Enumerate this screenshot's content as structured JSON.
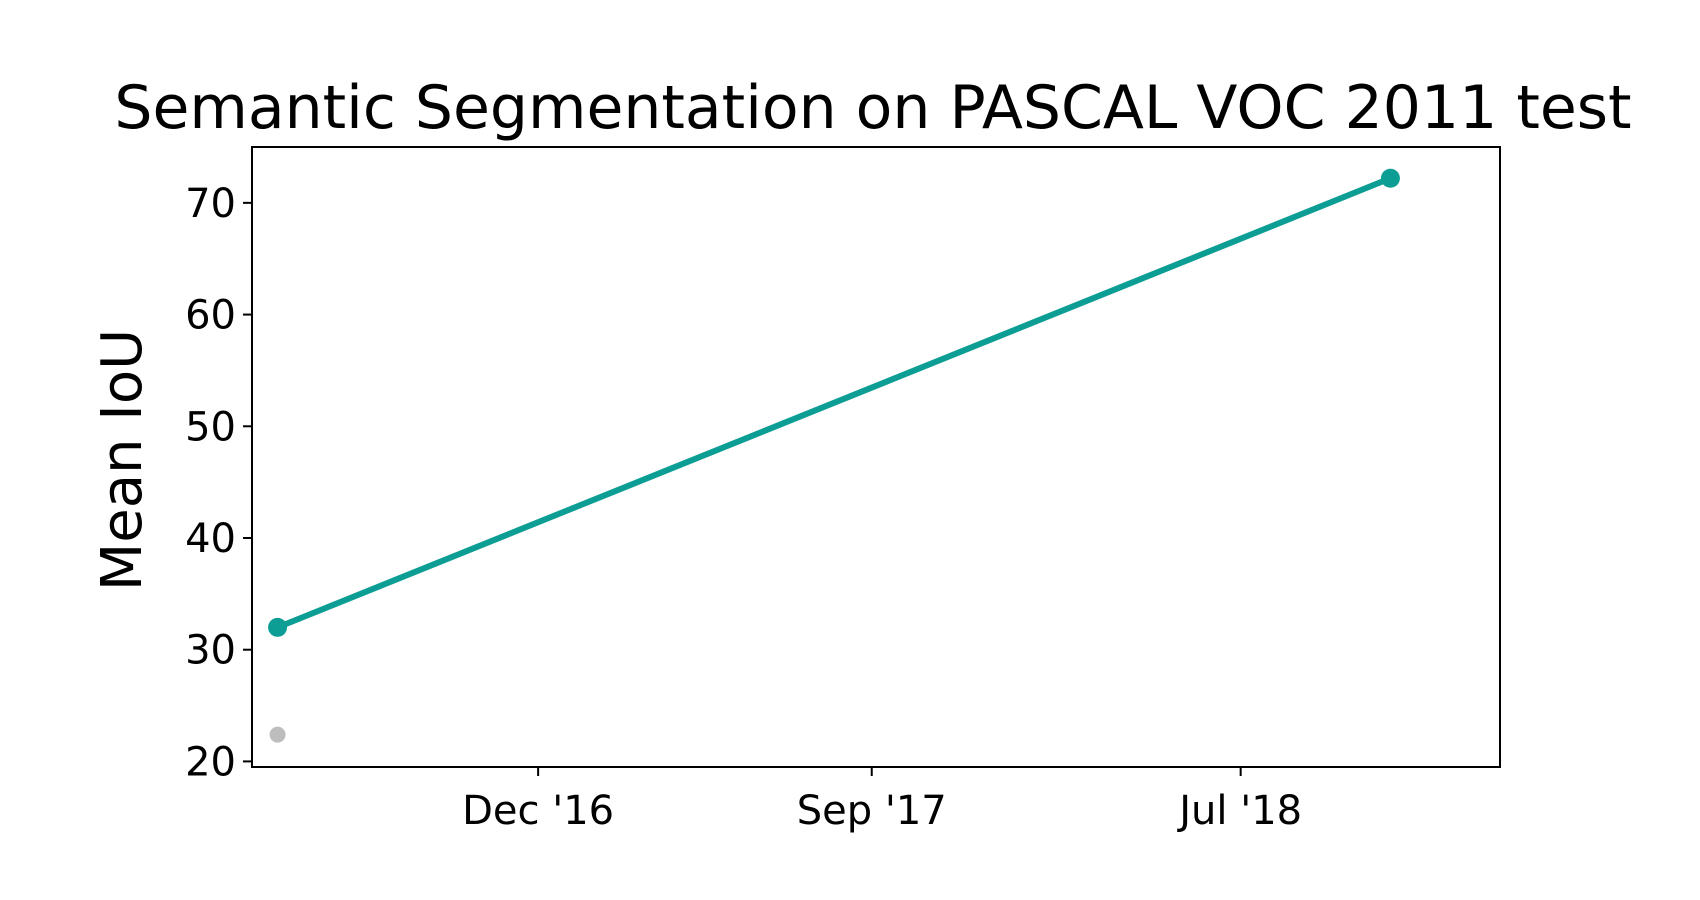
{
  "chart_data": {
    "type": "line",
    "title": "Semantic Segmentation on PASCAL VOC 2011 test",
    "xlabel": "",
    "ylabel": "Mean IoU",
    "x_axis_kind": "date",
    "xlim": [
      "2016-04-10",
      "2019-01-30"
    ],
    "ylim": [
      19.5,
      75
    ],
    "x_ticks": [
      {
        "date": "2016-12-01",
        "label": "Dec '16"
      },
      {
        "date": "2017-09-01",
        "label": "Sep '17"
      },
      {
        "date": "2018-07-01",
        "label": "Jul '18"
      }
    ],
    "y_ticks": [
      20,
      30,
      40,
      50,
      60,
      70
    ],
    "grid": false,
    "legend": "none",
    "series": [
      {
        "color": "#0c9e94",
        "line": true,
        "points": [
          {
            "x": "2016-05-01",
            "y": 32.0
          },
          {
            "x": "2018-11-01",
            "y": 72.2
          }
        ]
      },
      {
        "color": "#bdbdbd",
        "line": false,
        "points": [
          {
            "x": "2016-05-01",
            "y": 22.4
          }
        ]
      }
    ]
  }
}
